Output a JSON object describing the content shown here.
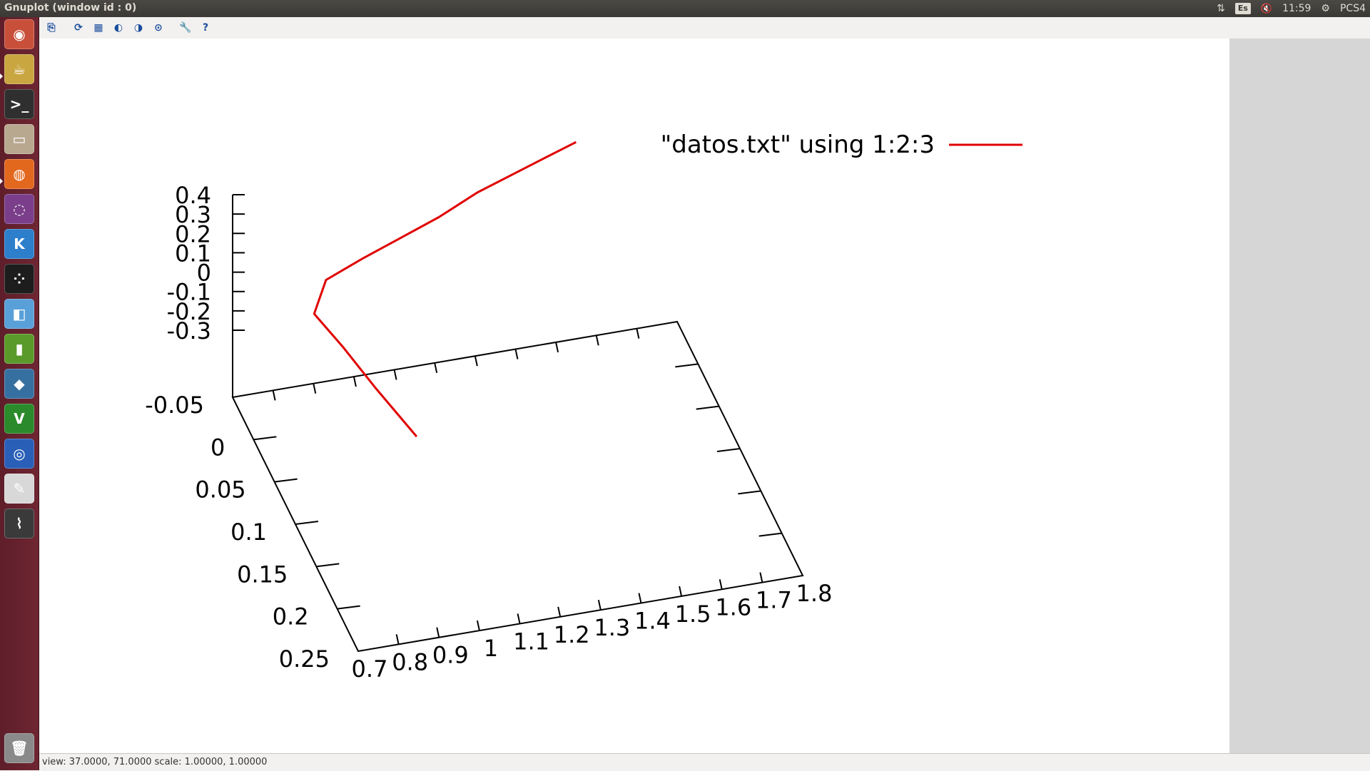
{
  "window": {
    "title": "Gnuplot (window id : 0)"
  },
  "tray": {
    "keyboard_layout": "Es",
    "clock": "11:59",
    "user": "PCS4"
  },
  "launcher": {
    "items": [
      {
        "name": "ubuntu-dash-icon",
        "glyph": "◉",
        "color": "#c8503a"
      },
      {
        "name": "gedit-teapot-icon",
        "glyph": "☕",
        "color": "#c9a640"
      },
      {
        "name": "terminal-icon",
        "glyph": ">_",
        "color": "#2f2f2f"
      },
      {
        "name": "files-icon",
        "glyph": "▭",
        "color": "#b9a890"
      },
      {
        "name": "firefox-icon",
        "glyph": "◍",
        "color": "#e2681e"
      },
      {
        "name": "unity-icon",
        "glyph": "◌",
        "color": "#7a3e8a"
      },
      {
        "name": "kile-icon",
        "glyph": "K",
        "color": "#2d7fcb"
      },
      {
        "name": "dots-app-icon",
        "glyph": "⁘",
        "color": "#1d1d1d"
      },
      {
        "name": "cube-app-icon",
        "glyph": "◧",
        "color": "#5aa0d8"
      },
      {
        "name": "battery-app-icon",
        "glyph": "▮",
        "color": "#5a9a2a"
      },
      {
        "name": "python-icon",
        "glyph": "◆",
        "color": "#3670a0"
      },
      {
        "name": "vim-icon",
        "glyph": "V",
        "color": "#2b8a2b"
      },
      {
        "name": "eye-app-icon",
        "glyph": "◎",
        "color": "#2a5fb8"
      },
      {
        "name": "text-editor-icon",
        "glyph": "✎",
        "color": "#d8d8d8"
      },
      {
        "name": "gnuplot-icon",
        "glyph": "⌇",
        "color": "#3a3a3a"
      },
      {
        "name": "trash-icon",
        "glyph": "🗑",
        "color": "#8a8a8a"
      }
    ]
  },
  "toolbar": {
    "buttons": [
      {
        "name": "copy-clipboard-icon",
        "glyph": "⎘"
      },
      {
        "name": "replot-icon",
        "glyph": "⟳"
      },
      {
        "name": "grid-icon",
        "glyph": "▦"
      },
      {
        "name": "zoom-prev-icon",
        "glyph": "◐"
      },
      {
        "name": "zoom-next-icon",
        "glyph": "◑"
      },
      {
        "name": "unzoom-icon",
        "glyph": "⊙"
      },
      {
        "name": "options-icon",
        "glyph": "🔧"
      },
      {
        "name": "help-icon",
        "glyph": "?"
      }
    ]
  },
  "status": {
    "text": "view: 37.0000, 71.0000  scale: 1.00000, 1.00000"
  },
  "chart_data": {
    "type": "line",
    "projection": "3d surface/line plot",
    "legend": {
      "label": "\"datos.txt\" using 1:2:3",
      "color": "#e00000",
      "placement": "top-right"
    },
    "x_ticks": [
      "0.7",
      "0.8",
      "0.9",
      "1",
      "1.1",
      "1.2",
      "1.3",
      "1.4",
      "1.5",
      "1.6",
      "1.7",
      "1.8"
    ],
    "y_ticks": [
      "-0.05",
      "0",
      "0.05",
      "0.1",
      "0.15",
      "0.2",
      "0.25"
    ],
    "z_ticks": [
      "0.4",
      "0.3",
      "0.2",
      "0.1",
      "0",
      "-0.1",
      "-0.2",
      "-0.3"
    ],
    "xlim": [
      0.7,
      1.8
    ],
    "ylim": [
      -0.05,
      0.25
    ],
    "zlim": [
      -0.3,
      0.4
    ],
    "series": [
      {
        "color": "#e00000",
        "points": [
          {
            "x": 1.0,
            "y": 0.1,
            "z": -0.3
          },
          {
            "x": 0.95,
            "y": 0.05,
            "z": -0.25
          },
          {
            "x": 0.9,
            "y": 0.02,
            "z": -0.15
          },
          {
            "x": 0.85,
            "y": 0.0,
            "z": -0.05
          },
          {
            "x": 0.9,
            "y": -0.02,
            "z": 0.02
          },
          {
            "x": 1.0,
            "y": -0.03,
            "z": 0.05
          },
          {
            "x": 1.1,
            "y": -0.035,
            "z": 0.1
          },
          {
            "x": 1.2,
            "y": -0.04,
            "z": 0.15
          },
          {
            "x": 1.3,
            "y": -0.045,
            "z": 0.22
          },
          {
            "x": 1.45,
            "y": -0.05,
            "z": 0.3
          },
          {
            "x": 1.55,
            "y": -0.05,
            "z": 0.37
          }
        ]
      }
    ]
  }
}
